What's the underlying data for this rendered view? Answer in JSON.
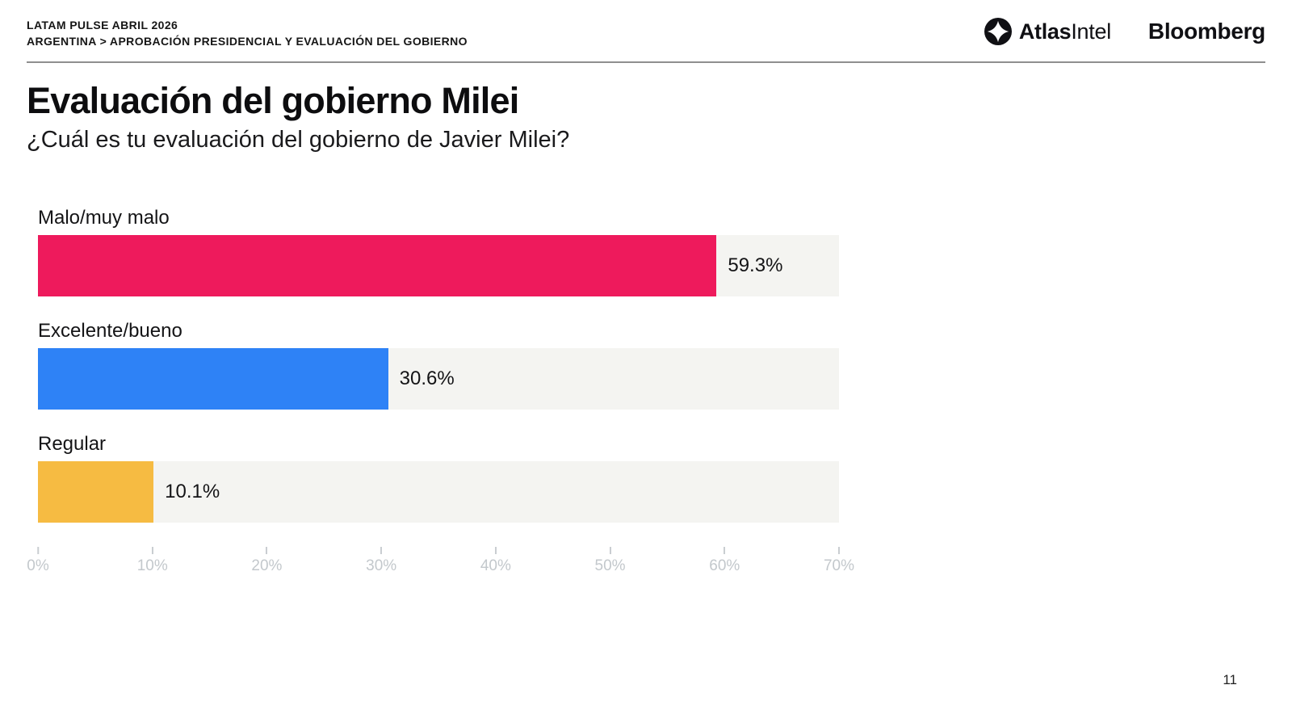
{
  "header": {
    "kicker_line1": "LATAM PULSE ABRIL 2026",
    "kicker_line2": "ARGENTINA > APROBACIÓN PRESIDENCIAL Y EVALUACIÓN DEL GOBIERNO",
    "logos": {
      "atlas_icon": "atlasintel-compass-icon",
      "atlas_bold": "Atlas",
      "atlas_regular": "Intel",
      "bloomberg": "Bloomberg"
    }
  },
  "title": "Evaluación del gobierno Milei",
  "subtitle": "¿Cuál es tu evaluación del gobierno de Javier Milei?",
  "chart_data": {
    "type": "bar",
    "orientation": "horizontal",
    "title": "Evaluación del gobierno Milei",
    "xlabel": "",
    "ylabel": "",
    "categories": [
      "Malo/muy malo",
      "Excelente/bueno",
      "Regular"
    ],
    "values": [
      59.3,
      30.6,
      10.1
    ],
    "value_labels": [
      "59.3%",
      "30.6%",
      "10.1%"
    ],
    "bar_colors": [
      "#ee1a5c",
      "#2e82f6",
      "#f6bb42"
    ],
    "track_color": "#f4f4f1",
    "xlim": [
      0,
      70
    ],
    "x_ticks": [
      0,
      10,
      20,
      30,
      40,
      50,
      60,
      70
    ],
    "x_tick_labels": [
      "0%",
      "10%",
      "20%",
      "30%",
      "40%",
      "50%",
      "60%",
      "70%"
    ],
    "grid": false,
    "legend": false
  },
  "page_number": "11",
  "colors": {
    "negative": "#ee1a5c",
    "positive": "#2e82f6",
    "neutral": "#f6bb42",
    "track": "#f4f4f1",
    "axis_text": "#c3c8cc",
    "divider": "#8f8f8f"
  }
}
